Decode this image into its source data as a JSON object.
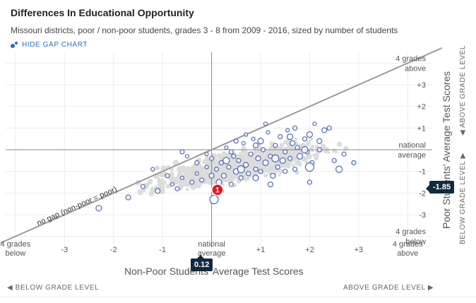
{
  "header": {
    "title": "Differences In Educational Opportunity",
    "subtitle": "Missouri districts, poor / non-poor students, grades 3 - 8 from 2009 - 2016, sized by number of students",
    "toggle_label": "HIDE GAP CHART"
  },
  "colors": {
    "accent": "#2a6fb5",
    "background_points": "#dcdcdc",
    "badge": "#0f2b3f",
    "marker": "#e01919"
  },
  "chart_data": {
    "type": "scatter",
    "xlabel": "Non-Poor Students' Average Test Scores",
    "ylabel": "Poor Students' Average Test Scores",
    "xlim": [
      -4.2,
      4.5
    ],
    "ylim": [
      -4.5,
      4.5
    ],
    "grid": true,
    "x_ticks": [
      {
        "value": -4,
        "label": "4 grades",
        "label2": "below"
      },
      {
        "value": -3,
        "label": "-3"
      },
      {
        "value": -2,
        "label": "-2"
      },
      {
        "value": -1,
        "label": "-1"
      },
      {
        "value": 0,
        "label": "national",
        "label2": "average"
      },
      {
        "value": 1,
        "label": "+1"
      },
      {
        "value": 2,
        "label": "+2"
      },
      {
        "value": 3,
        "label": "+3"
      },
      {
        "value": 4,
        "label": "4 grades",
        "label2": "above"
      }
    ],
    "y_ticks": [
      {
        "value": 4,
        "label": "4 grades",
        "label2": "above"
      },
      {
        "value": 3,
        "label": "+3"
      },
      {
        "value": 2,
        "label": "+2"
      },
      {
        "value": 1,
        "label": "+1"
      },
      {
        "value": 0,
        "label": "national",
        "label2": "average"
      },
      {
        "value": -1,
        "label": "-1"
      },
      {
        "value": -2,
        "label": "-2"
      },
      {
        "value": -3,
        "label": "-3"
      },
      {
        "value": -4,
        "label": "4 grades",
        "label2": "below"
      }
    ],
    "diagonal_label": "no gap (non-poor = poor)",
    "y_side_labels": {
      "above": "ABOVE GRADE LEVEL",
      "below": "BELOW GRADE LEVEL"
    },
    "x_side_labels": {
      "below": "BELOW GRADE LEVEL",
      "above": "ABOVE GRADE LEVEL"
    },
    "selected_point": {
      "label": "1",
      "x": 0.12,
      "y": -1.85,
      "x_badge": "0.12",
      "y_badge": "-1.85"
    },
    "series": [
      {
        "points": [
          {
            "x": -2.3,
            "y": -2.7,
            "r": 4
          },
          {
            "x": -1.7,
            "y": -2.2,
            "r": 3.5
          },
          {
            "x": -1.4,
            "y": -1.7,
            "r": 3
          },
          {
            "x": -1.1,
            "y": -1.9,
            "r": 3.5
          },
          {
            "x": -0.9,
            "y": -1.2,
            "r": 3
          },
          {
            "x": -0.8,
            "y": -1.6,
            "r": 2.5
          },
          {
            "x": -0.7,
            "y": -1.8,
            "r": 3
          },
          {
            "x": -0.6,
            "y": -1.3,
            "r": 2.5
          },
          {
            "x": -0.5,
            "y": -0.3,
            "r": 2.5
          },
          {
            "x": -0.4,
            "y": -1.5,
            "r": 3
          },
          {
            "x": -0.3,
            "y": -1.1,
            "r": 2.5
          },
          {
            "x": -0.2,
            "y": -1.4,
            "r": 3
          },
          {
            "x": -0.1,
            "y": -0.8,
            "r": 2.5
          },
          {
            "x": 0.0,
            "y": -1.2,
            "r": 3.5
          },
          {
            "x": 0.0,
            "y": -0.4,
            "r": 3
          },
          {
            "x": 0.05,
            "y": -2.3,
            "r": 6
          },
          {
            "x": 0.1,
            "y": -0.9,
            "r": 3
          },
          {
            "x": 0.15,
            "y": -1.5,
            "r": 4
          },
          {
            "x": 0.2,
            "y": -0.6,
            "r": 3
          },
          {
            "x": 0.25,
            "y": -1.2,
            "r": 3.5
          },
          {
            "x": 0.3,
            "y": 0.1,
            "r": 2.5
          },
          {
            "x": 0.35,
            "y": -0.8,
            "r": 3
          },
          {
            "x": 0.4,
            "y": -1.6,
            "r": 3
          },
          {
            "x": 0.45,
            "y": -0.3,
            "r": 3
          },
          {
            "x": 0.5,
            "y": -1.0,
            "r": 4
          },
          {
            "x": 0.55,
            "y": -0.5,
            "r": 3
          },
          {
            "x": 0.6,
            "y": -1.3,
            "r": 3
          },
          {
            "x": 0.65,
            "y": 0.3,
            "r": 2.5
          },
          {
            "x": 0.7,
            "y": -0.7,
            "r": 3.5
          },
          {
            "x": 0.75,
            "y": -1.1,
            "r": 3
          },
          {
            "x": 0.8,
            "y": -0.2,
            "r": 3
          },
          {
            "x": 0.85,
            "y": 0.5,
            "r": 2.5
          },
          {
            "x": 0.9,
            "y": -0.9,
            "r": 3
          },
          {
            "x": 0.95,
            "y": -0.4,
            "r": 3.5
          },
          {
            "x": 1.0,
            "y": -1.0,
            "r": 3
          },
          {
            "x": 1.05,
            "y": 0.0,
            "r": 3
          },
          {
            "x": 1.1,
            "y": -0.6,
            "r": 4
          },
          {
            "x": 1.15,
            "y": 0.8,
            "r": 2.5
          },
          {
            "x": 1.2,
            "y": -0.3,
            "r": 3
          },
          {
            "x": 1.25,
            "y": -1.2,
            "r": 3.5
          },
          {
            "x": 1.3,
            "y": 0.2,
            "r": 3
          },
          {
            "x": 1.35,
            "y": -0.8,
            "r": 3
          },
          {
            "x": 1.4,
            "y": 0.6,
            "r": 3
          },
          {
            "x": 1.45,
            "y": -0.5,
            "r": 4
          },
          {
            "x": 1.5,
            "y": -0.1,
            "r": 3
          },
          {
            "x": 1.55,
            "y": 0.9,
            "r": 2.5
          },
          {
            "x": 1.6,
            "y": -0.4,
            "r": 3
          },
          {
            "x": 1.65,
            "y": 0.3,
            "r": 3.5
          },
          {
            "x": 1.7,
            "y": -0.9,
            "r": 3
          },
          {
            "x": 1.75,
            "y": 0.1,
            "r": 3
          },
          {
            "x": 1.8,
            "y": -0.3,
            "r": 4
          },
          {
            "x": 1.9,
            "y": 0.5,
            "r": 3
          },
          {
            "x": 1.95,
            "y": -0.1,
            "r": 3
          },
          {
            "x": 2.0,
            "y": 0.7,
            "r": 4
          },
          {
            "x": 2.05,
            "y": -0.6,
            "r": 3
          },
          {
            "x": 2.1,
            "y": 1.2,
            "r": 2.5
          },
          {
            "x": 2.2,
            "y": 0.4,
            "r": 3.5
          },
          {
            "x": 2.4,
            "y": 1.0,
            "r": 3
          },
          {
            "x": 2.5,
            "y": -0.5,
            "r": 3
          },
          {
            "x": 2.6,
            "y": -0.9,
            "r": 4.5
          },
          {
            "x": 2.7,
            "y": -0.2,
            "r": 3
          },
          {
            "x": 2.9,
            "y": -0.6,
            "r": 3
          },
          {
            "x": -0.3,
            "y": -0.6,
            "r": 3
          },
          {
            "x": 0.9,
            "y": 0.2,
            "r": 3.5
          },
          {
            "x": 1.2,
            "y": -1.6,
            "r": 3.5
          },
          {
            "x": 0.4,
            "y": -0.1,
            "r": 3
          },
          {
            "x": 1.6,
            "y": 0.6,
            "r": 4
          },
          {
            "x": 2.0,
            "y": -1.5,
            "r": 3
          },
          {
            "x": 0.7,
            "y": 0.7,
            "r": 2.5
          },
          {
            "x": 1.9,
            "y": 0.0,
            "r": 4.5
          },
          {
            "x": 2.0,
            "y": -0.8,
            "r": 6
          },
          {
            "x": 0.2,
            "y": -1.9,
            "r": 3
          },
          {
            "x": 1.1,
            "y": 1.2,
            "r": 2.5
          },
          {
            "x": -1.2,
            "y": -0.9,
            "r": 2.5
          },
          {
            "x": -0.6,
            "y": -0.1,
            "r": 3
          },
          {
            "x": 1.3,
            "y": -0.4,
            "r": 5
          },
          {
            "x": 0.6,
            "y": -0.9,
            "r": 5
          },
          {
            "x": 0.9,
            "y": -1.3,
            "r": 4
          },
          {
            "x": 1.0,
            "y": 0.4,
            "r": 4
          },
          {
            "x": 2.3,
            "y": 0.9,
            "r": 3.5
          },
          {
            "x": 1.5,
            "y": -1.0,
            "r": 3
          },
          {
            "x": 0.3,
            "y": -0.5,
            "r": 4.5
          },
          {
            "x": -0.1,
            "y": -0.2,
            "r": 2.5
          },
          {
            "x": 0.5,
            "y": 0.4,
            "r": 3
          },
          {
            "x": 1.7,
            "y": 1.0,
            "r": 3
          },
          {
            "x": 2.2,
            "y": 0.0,
            "r": 3
          }
        ]
      }
    ]
  }
}
